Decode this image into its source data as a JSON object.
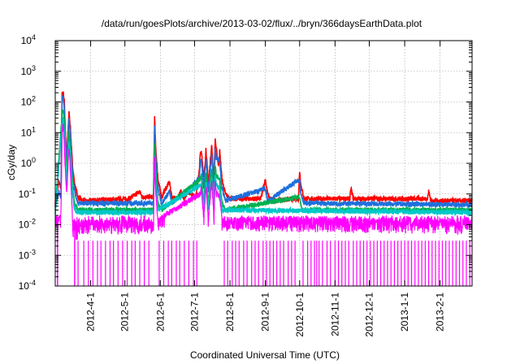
{
  "chart_data": {
    "type": "line",
    "title": "/data/run/goesPlots/archive/2013-03-02/flux/../bryn/366daysEarthData.plot",
    "xlabel": "Coordinated Universal Time (UTC)",
    "ylabel": "cGy/day",
    "yscale": "log",
    "ylim": [
      0.0001,
      10000
    ],
    "y_ticks": [
      {
        "value": 0.0001,
        "base": "10",
        "exp": "-4"
      },
      {
        "value": 0.001,
        "base": "10",
        "exp": "-3"
      },
      {
        "value": 0.01,
        "base": "10",
        "exp": "-2"
      },
      {
        "value": 0.1,
        "base": "10",
        "exp": "-1"
      },
      {
        "value": 1,
        "base": "10",
        "exp": "0"
      },
      {
        "value": 10,
        "base": "10",
        "exp": "1"
      },
      {
        "value": 100,
        "base": "10",
        "exp": "2"
      },
      {
        "value": 1000,
        "base": "10",
        "exp": "3"
      },
      {
        "value": 10000,
        "base": "10",
        "exp": "4"
      }
    ],
    "xlim": [
      "2012-03-01",
      "2013-03-01"
    ],
    "x_ticks": [
      "2012-4-1",
      "2012-5-1",
      "2012-6-1",
      "2012-7-1",
      "2012-8-1",
      "2012-9-1",
      "2012-10-1",
      "2012-11-1",
      "2012-12-1",
      "2013-1-1",
      "2013-2-1"
    ],
    "x_tick_dates": [
      "2012-04-01",
      "2012-05-01",
      "2012-06-01",
      "2012-07-01",
      "2012-08-01",
      "2012-09-01",
      "2012-10-01",
      "2012-11-01",
      "2012-12-01",
      "2013-01-01",
      "2013-02-01"
    ],
    "grid": true,
    "series": [
      {
        "color": "#ff0000",
        "baseline": 0.06,
        "points": [
          [
            "2012-03-01",
            0.05
          ],
          [
            "2012-03-04",
            0.25
          ],
          [
            "2012-03-06",
            0.15
          ],
          [
            "2012-03-07",
            180
          ],
          [
            "2012-03-08",
            220
          ],
          [
            "2012-03-09",
            100
          ],
          [
            "2012-03-10",
            8
          ],
          [
            "2012-03-11",
            1.5
          ],
          [
            "2012-03-13",
            45
          ],
          [
            "2012-03-14",
            20
          ],
          [
            "2012-03-16",
            1
          ],
          [
            "2012-03-18",
            0.2
          ],
          [
            "2012-03-21",
            0.08
          ],
          [
            "2012-03-25",
            0.06
          ],
          [
            "2012-05-05",
            0.07
          ],
          [
            "2012-05-14",
            0.12
          ],
          [
            "2012-05-16",
            0.08
          ],
          [
            "2012-05-26",
            0.08
          ],
          [
            "2012-05-27",
            30
          ],
          [
            "2012-05-28",
            3
          ],
          [
            "2012-05-30",
            0.3
          ],
          [
            "2012-06-02",
            0.08
          ],
          [
            "2012-06-09",
            0.25
          ],
          [
            "2012-06-11",
            0.08
          ],
          [
            "2012-06-16",
            0.07
          ],
          [
            "2012-06-19",
            0.12
          ],
          [
            "2012-06-22",
            0.07
          ],
          [
            "2012-06-25",
            0.12
          ],
          [
            "2012-07-02",
            0.08
          ],
          [
            "2012-07-05",
            0.5
          ],
          [
            "2012-07-06",
            2
          ],
          [
            "2012-07-07",
            2.5
          ],
          [
            "2012-07-08",
            1
          ],
          [
            "2012-07-09",
            0.3
          ],
          [
            "2012-07-10",
            0.8
          ],
          [
            "2012-07-11",
            3
          ],
          [
            "2012-07-12",
            0.8
          ],
          [
            "2012-07-13",
            0.2
          ],
          [
            "2012-07-15",
            1.5
          ],
          [
            "2012-07-16",
            4
          ],
          [
            "2012-07-17",
            1
          ],
          [
            "2012-07-18",
            0.3
          ],
          [
            "2012-07-19",
            6
          ],
          [
            "2012-07-20",
            3
          ],
          [
            "2012-07-22",
            0.8
          ],
          [
            "2012-07-23",
            2.5
          ],
          [
            "2012-07-25",
            0.3
          ],
          [
            "2012-07-28",
            0.1
          ],
          [
            "2012-08-01",
            0.07
          ],
          [
            "2012-08-28",
            0.07
          ],
          [
            "2012-09-01",
            0.3
          ],
          [
            "2012-09-03",
            0.1
          ],
          [
            "2012-09-06",
            0.06
          ],
          [
            "2012-09-30",
            0.07
          ],
          [
            "2012-10-01",
            0.6
          ],
          [
            "2012-10-02",
            0.2
          ],
          [
            "2012-10-05",
            0.07
          ],
          [
            "2012-11-14",
            0.07
          ],
          [
            "2012-11-15",
            0.15
          ],
          [
            "2012-11-17",
            0.07
          ],
          [
            "2013-01-21",
            0.07
          ],
          [
            "2013-01-22",
            0.12
          ],
          [
            "2013-01-24",
            0.06
          ],
          [
            "2013-03-01",
            0.06
          ]
        ]
      },
      {
        "color": "#1e6fdc",
        "baseline": 0.045,
        "points": [
          [
            "2012-03-01",
            0.04
          ],
          [
            "2012-03-04",
            0.12
          ],
          [
            "2012-03-06",
            0.08
          ],
          [
            "2012-03-07",
            130
          ],
          [
            "2012-03-08",
            150
          ],
          [
            "2012-03-09",
            60
          ],
          [
            "2012-03-10",
            5
          ],
          [
            "2012-03-11",
            1
          ],
          [
            "2012-03-13",
            30
          ],
          [
            "2012-03-14",
            12
          ],
          [
            "2012-03-16",
            0.6
          ],
          [
            "2012-03-18",
            0.12
          ],
          [
            "2012-03-21",
            0.05
          ],
          [
            "2012-05-26",
            0.05
          ],
          [
            "2012-05-27",
            15
          ],
          [
            "2012-05-28",
            1.5
          ],
          [
            "2012-05-30",
            0.15
          ],
          [
            "2012-06-02",
            0.05
          ],
          [
            "2012-06-09",
            0.12
          ],
          [
            "2012-06-11",
            0.05
          ],
          [
            "2012-07-05",
            0.3
          ],
          [
            "2012-07-06",
            1
          ],
          [
            "2012-07-07",
            1.3
          ],
          [
            "2012-07-09",
            0.15
          ],
          [
            "2012-07-11",
            1.5
          ],
          [
            "2012-07-13",
            0.12
          ],
          [
            "2012-07-16",
            2
          ],
          [
            "2012-07-18",
            0.15
          ],
          [
            "2012-07-19",
            3
          ],
          [
            "2012-07-20",
            1.5
          ],
          [
            "2012-07-23",
            1.2
          ],
          [
            "2012-07-25",
            0.15
          ],
          [
            "2012-07-28",
            0.06
          ],
          [
            "2012-09-01",
            0.15
          ],
          [
            "2012-09-03",
            0.06
          ],
          [
            "2012-10-01",
            0.3
          ],
          [
            "2012-10-02",
            0.1
          ],
          [
            "2012-10-05",
            0.05
          ],
          [
            "2013-03-01",
            0.045
          ]
        ]
      },
      {
        "color": "#00b050",
        "baseline": 0.03,
        "points": [
          [
            "2012-03-01",
            0.03
          ],
          [
            "2012-03-07",
            40
          ],
          [
            "2012-03-08",
            60
          ],
          [
            "2012-03-09",
            20
          ],
          [
            "2012-03-10",
            2
          ],
          [
            "2012-03-11",
            0.4
          ],
          [
            "2012-03-13",
            10
          ],
          [
            "2012-03-14",
            4
          ],
          [
            "2012-03-16",
            0.2
          ],
          [
            "2012-03-18",
            0.05
          ],
          [
            "2012-03-21",
            0.03
          ],
          [
            "2012-05-26",
            0.03
          ],
          [
            "2012-05-27",
            5
          ],
          [
            "2012-05-28",
            0.5
          ],
          [
            "2012-05-30",
            0.05
          ],
          [
            "2012-06-02",
            0.03
          ],
          [
            "2012-07-06",
            0.3
          ],
          [
            "2012-07-07",
            0.4
          ],
          [
            "2012-07-09",
            0.05
          ],
          [
            "2012-07-11",
            0.5
          ],
          [
            "2012-07-13",
            0.05
          ],
          [
            "2012-07-16",
            0.6
          ],
          [
            "2012-07-18",
            0.05
          ],
          [
            "2012-07-19",
            1
          ],
          [
            "2012-07-20",
            0.4
          ],
          [
            "2012-07-23",
            0.3
          ],
          [
            "2012-07-25",
            0.05
          ],
          [
            "2012-07-28",
            0.03
          ],
          [
            "2012-10-01",
            0.08
          ],
          [
            "2012-10-03",
            0.03
          ],
          [
            "2013-03-01",
            0.03
          ]
        ]
      },
      {
        "color": "#00c8c8",
        "baseline": 0.025,
        "points": [
          [
            "2012-03-01",
            0.025
          ],
          [
            "2012-03-07",
            20
          ],
          [
            "2012-03-08",
            30
          ],
          [
            "2012-03-09",
            10
          ],
          [
            "2012-03-10",
            1
          ],
          [
            "2012-03-11",
            0.2
          ],
          [
            "2012-03-13",
            5
          ],
          [
            "2012-03-14",
            2
          ],
          [
            "2012-03-16",
            0.1
          ],
          [
            "2012-03-18",
            0.03
          ],
          [
            "2012-03-21",
            0.025
          ],
          [
            "2012-05-26",
            0.025
          ],
          [
            "2012-05-27",
            2
          ],
          [
            "2012-05-28",
            0.2
          ],
          [
            "2012-05-30",
            0.03
          ],
          [
            "2012-07-07",
            0.2
          ],
          [
            "2012-07-09",
            0.03
          ],
          [
            "2012-07-11",
            0.25
          ],
          [
            "2012-07-13",
            0.03
          ],
          [
            "2012-07-16",
            0.3
          ],
          [
            "2012-07-18",
            0.03
          ],
          [
            "2012-07-19",
            0.5
          ],
          [
            "2012-07-20",
            0.2
          ],
          [
            "2012-07-23",
            0.15
          ],
          [
            "2012-07-25",
            0.03
          ],
          [
            "2013-03-01",
            0.025
          ]
        ]
      },
      {
        "color": "#ff00ff",
        "baseline": 0.012,
        "noise_low": 0.003,
        "noise_high": 0.02,
        "points": [
          [
            "2012-03-01",
            0.01
          ],
          [
            "2012-03-06",
            0.02
          ],
          [
            "2012-03-07",
            10
          ],
          [
            "2012-03-08",
            20
          ],
          [
            "2012-03-09",
            3
          ],
          [
            "2012-03-10",
            0.5
          ],
          [
            "2012-03-11",
            0.1
          ],
          [
            "2012-03-13",
            3
          ],
          [
            "2012-03-14",
            1
          ],
          [
            "2012-03-16",
            0.02
          ],
          [
            "2012-03-17",
            0.001
          ],
          [
            "2012-03-18",
            0.0005
          ],
          [
            "2012-03-20",
            0.006
          ],
          [
            "2012-03-22",
            0.012
          ],
          [
            "2012-05-26",
            0.012
          ],
          [
            "2012-05-27",
            1.5
          ],
          [
            "2012-05-28",
            0.1
          ],
          [
            "2012-05-30",
            0.015
          ],
          [
            "2012-07-06",
            0.1
          ],
          [
            "2012-07-07",
            0.15
          ],
          [
            "2012-07-09",
            0.015
          ],
          [
            "2012-07-11",
            0.2
          ],
          [
            "2012-07-13",
            0.015
          ],
          [
            "2012-07-16",
            0.25
          ],
          [
            "2012-07-18",
            0.015
          ],
          [
            "2012-07-19",
            0.3
          ],
          [
            "2012-07-20",
            0.1
          ],
          [
            "2012-07-23",
            0.08
          ],
          [
            "2012-07-25",
            0.015
          ],
          [
            "2013-03-01",
            0.012
          ]
        ]
      }
    ],
    "magenta_dropouts": [
      "2012-03-21",
      "2012-03-26",
      "2012-03-30",
      "2012-04-03",
      "2012-04-07",
      "2012-04-10",
      "2012-04-14",
      "2012-04-18",
      "2012-04-21",
      "2012-04-25",
      "2012-04-29",
      "2012-05-03",
      "2012-05-07",
      "2012-05-10",
      "2012-05-14",
      "2012-05-18",
      "2012-05-22",
      "2012-05-31",
      "2012-06-04",
      "2012-06-08",
      "2012-06-11",
      "2012-06-15",
      "2012-06-18",
      "2012-06-22",
      "2012-06-26",
      "2012-06-30",
      "2012-07-03",
      "2012-07-27",
      "2012-07-30",
      "2012-08-03",
      "2012-08-06",
      "2012-08-09",
      "2012-08-13",
      "2012-08-16",
      "2012-08-20",
      "2012-08-23",
      "2012-08-26",
      "2012-08-30",
      "2012-09-02",
      "2012-09-05",
      "2012-09-08",
      "2012-09-11",
      "2012-09-14",
      "2012-09-17",
      "2012-09-21",
      "2012-09-24",
      "2012-09-27",
      "2012-10-04",
      "2012-10-08",
      "2012-10-11",
      "2012-10-14",
      "2012-10-16",
      "2012-10-18",
      "2012-10-21",
      "2012-10-25",
      "2012-10-28",
      "2012-11-01",
      "2012-11-04",
      "2012-11-07",
      "2012-11-10",
      "2012-11-13",
      "2012-11-17",
      "2012-11-20",
      "2012-11-23",
      "2012-11-26",
      "2012-11-29",
      "2012-12-02",
      "2012-12-05",
      "2012-12-08",
      "2012-12-11",
      "2012-12-14",
      "2012-12-17",
      "2012-12-20",
      "2012-12-23",
      "2012-12-26",
      "2012-12-29",
      "2013-01-01",
      "2013-01-04",
      "2013-01-07",
      "2013-01-10",
      "2013-01-13",
      "2013-01-16",
      "2013-01-19",
      "2013-01-22",
      "2013-01-25",
      "2013-01-28",
      "2013-01-31",
      "2013-02-03",
      "2013-02-06",
      "2013-02-09",
      "2013-02-12",
      "2013-02-15",
      "2013-02-18",
      "2013-02-21",
      "2013-02-24",
      "2013-02-27"
    ]
  }
}
